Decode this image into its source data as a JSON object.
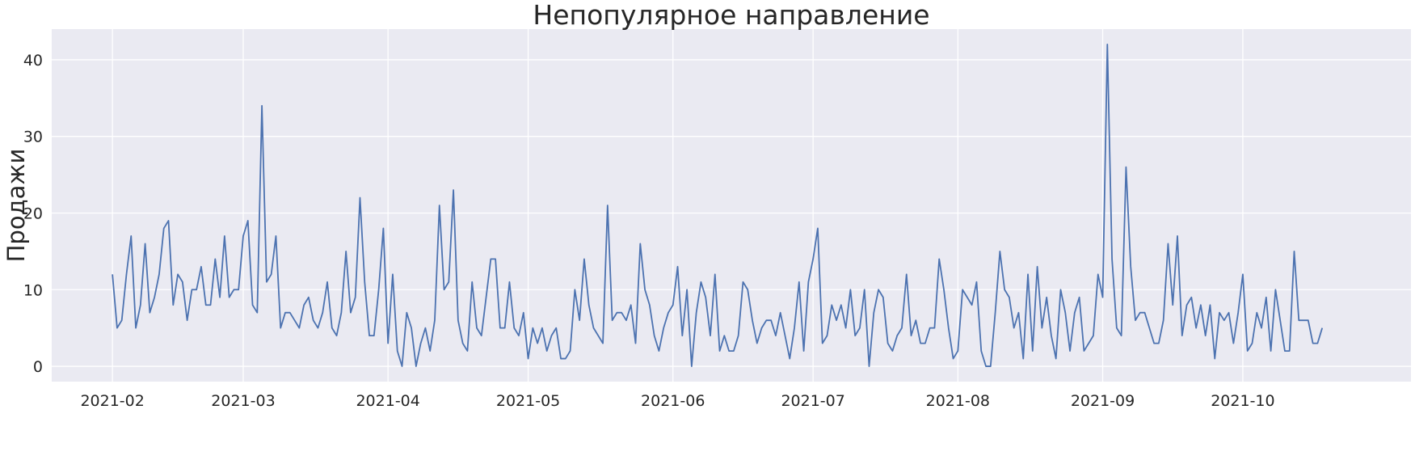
{
  "chart_data": {
    "type": "line",
    "title": "Непопулярное направление",
    "xlabel": "",
    "ylabel": "Продажи",
    "x_start": "2021-02-01",
    "x_end": "2021-10-19",
    "xlim": [
      "2021-01-19",
      "2021-11-06"
    ],
    "ylim": [
      -2,
      44
    ],
    "xticks": [
      "2021-02",
      "2021-03",
      "2021-04",
      "2021-05",
      "2021-06",
      "2021-07",
      "2021-08",
      "2021-09",
      "2021-10"
    ],
    "xtick_dates": [
      "2021-02-01",
      "2021-03-01",
      "2021-04-01",
      "2021-05-01",
      "2021-06-01",
      "2021-07-01",
      "2021-08-01",
      "2021-09-01",
      "2021-10-01"
    ],
    "yticks": [
      0,
      10,
      20,
      30,
      40
    ],
    "grid": true,
    "colors": {
      "background": "#eaeaf2",
      "grid": "#ffffff",
      "line": "#4c72b0"
    },
    "series": [
      {
        "values": [
          12,
          5,
          6,
          12,
          17,
          5,
          8,
          16,
          7,
          9,
          12,
          18,
          19,
          8,
          12,
          11,
          6,
          10,
          10,
          13,
          8,
          8,
          14,
          9,
          17,
          9,
          10,
          10,
          17,
          19,
          8,
          7,
          34,
          11,
          12,
          17,
          5,
          7,
          7,
          6,
          5,
          8,
          9,
          6,
          5,
          7,
          11,
          5,
          4,
          7,
          15,
          7,
          9,
          22,
          11,
          4,
          4,
          10,
          18,
          3,
          12,
          2,
          0,
          7,
          5,
          0,
          3,
          5,
          2,
          6,
          21,
          10,
          11,
          23,
          6,
          3,
          2,
          11,
          5,
          4,
          9,
          14,
          14,
          5,
          5,
          11,
          5,
          4,
          7,
          1,
          5,
          3,
          5,
          2,
          4,
          5,
          1,
          1,
          2,
          10,
          6,
          14,
          8,
          5,
          4,
          3,
          21,
          6,
          7,
          7,
          6,
          8,
          3,
          16,
          10,
          8,
          4,
          2,
          5,
          7,
          8,
          13,
          4,
          10,
          0,
          7,
          11,
          9,
          4,
          12,
          2,
          4,
          2,
          2,
          4,
          11,
          10,
          6,
          3,
          5,
          6,
          6,
          4,
          7,
          4,
          1,
          5,
          11,
          2,
          11,
          14,
          18,
          3,
          4,
          8,
          6,
          8,
          5,
          10,
          4,
          5,
          10,
          0,
          7,
          10,
          9,
          3,
          2,
          4,
          5,
          12,
          4,
          6,
          3,
          3,
          5,
          5,
          14,
          10,
          5,
          1,
          2,
          10,
          9,
          8,
          11,
          2,
          0,
          0,
          7,
          15,
          10,
          9,
          5,
          7,
          1,
          12,
          2,
          13,
          5,
          9,
          4,
          1,
          10,
          7,
          2,
          7,
          9,
          2,
          3,
          4,
          12,
          9,
          42,
          14,
          5,
          4,
          26,
          13,
          6,
          7,
          7,
          5,
          3,
          3,
          6,
          16,
          8,
          17,
          4,
          8,
          9,
          5,
          8,
          4,
          8,
          1,
          7,
          6,
          7,
          3,
          7,
          12,
          2,
          3,
          7,
          5,
          9,
          2,
          10,
          6,
          2,
          2,
          15,
          6,
          6,
          6,
          3,
          3,
          5
        ]
      }
    ]
  }
}
